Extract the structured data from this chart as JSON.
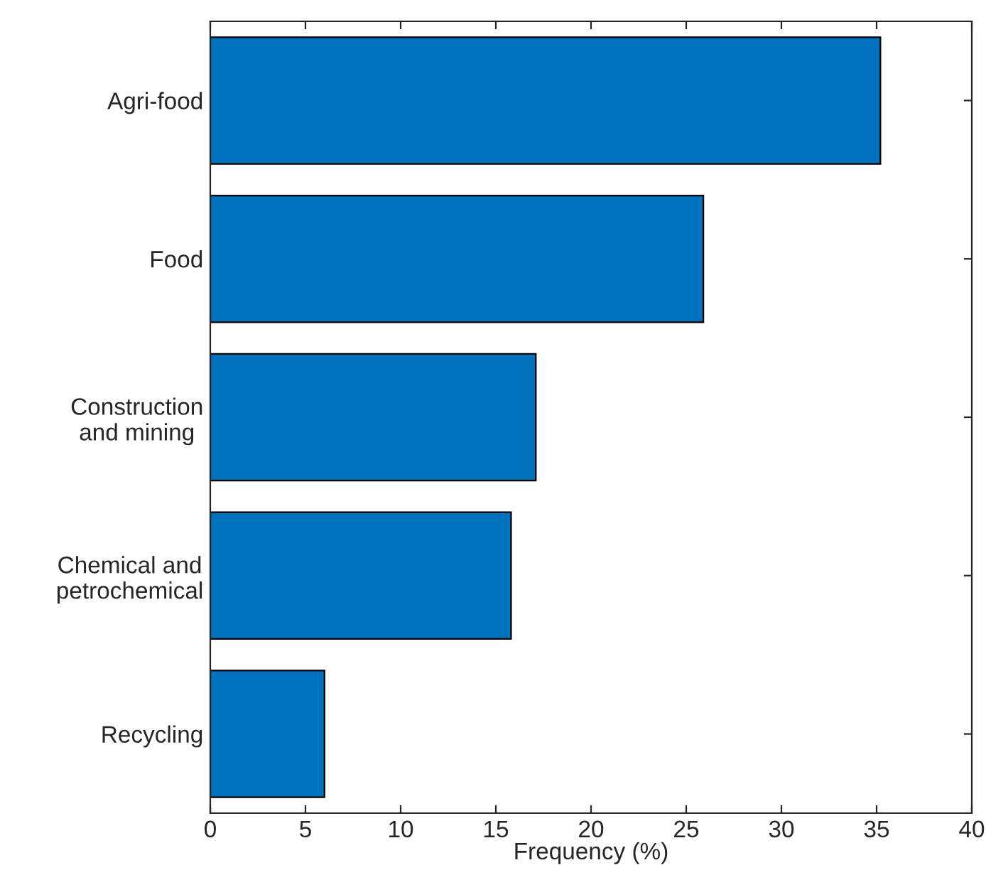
{
  "chart_data": {
    "type": "bar",
    "orientation": "horizontal",
    "xlabel": "Frequency (%)",
    "categories": [
      "Agri-food",
      "Food",
      "Construction\nand mining",
      "Chemical and\npetrochemical",
      "Recycling"
    ],
    "values": [
      35.2,
      25.9,
      17.1,
      15.8,
      6.0
    ],
    "color": "#0072bd",
    "xlim": [
      0,
      40
    ],
    "xticks": [
      0,
      5,
      10,
      15,
      20,
      25,
      30,
      35,
      40
    ],
    "grid": false,
    "legend": false
  }
}
